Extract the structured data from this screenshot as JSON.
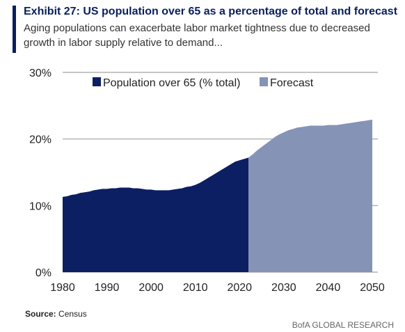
{
  "header": {
    "title": "Exhibit 27: US population over 65 as a percentage of total and forecast",
    "subtitle": "Aging populations can exacerbate labor market tightness due to decreased growth in labor supply relative to demand..."
  },
  "footer": {
    "source_label": "Source:",
    "source_text": " Census",
    "brand": "BofA GLOBAL RESEARCH"
  },
  "colors": {
    "accent": "#0a1f5c",
    "actual": "#0c1f63",
    "forecast": "#8593b6",
    "gridline": "#b3b3b3"
  },
  "chart_data": {
    "type": "area",
    "title": "",
    "xlabel": "",
    "ylabel": "",
    "xlim": [
      1980,
      2050
    ],
    "ylim": [
      0,
      30
    ],
    "x_ticks": [
      "1980",
      "1990",
      "2000",
      "2010",
      "2020",
      "2030",
      "2040",
      "2050"
    ],
    "y_ticks": [
      "0%",
      "10%",
      "20%",
      "30%"
    ],
    "grid": "horizontal",
    "legend_position": "top",
    "series": [
      {
        "name": "Population over 65 (% total)",
        "x": [
          1980,
          1981,
          1982,
          1983,
          1984,
          1985,
          1986,
          1987,
          1988,
          1989,
          1990,
          1991,
          1992,
          1993,
          1994,
          1995,
          1996,
          1997,
          1998,
          1999,
          2000,
          2001,
          2002,
          2003,
          2004,
          2005,
          2006,
          2007,
          2008,
          2009,
          2010,
          2011,
          2012,
          2013,
          2014,
          2015,
          2016,
          2017,
          2018,
          2019,
          2020,
          2021,
          2022
        ],
        "values": [
          11.3,
          11.4,
          11.6,
          11.7,
          11.9,
          12.0,
          12.1,
          12.3,
          12.4,
          12.5,
          12.5,
          12.6,
          12.6,
          12.7,
          12.7,
          12.7,
          12.6,
          12.6,
          12.5,
          12.4,
          12.4,
          12.3,
          12.3,
          12.3,
          12.3,
          12.4,
          12.5,
          12.6,
          12.8,
          12.9,
          13.1,
          13.4,
          13.8,
          14.2,
          14.6,
          15.0,
          15.4,
          15.8,
          16.2,
          16.6,
          16.8,
          17.0,
          17.2
        ]
      },
      {
        "name": "Forecast",
        "x": [
          2022,
          2023,
          2024,
          2025,
          2026,
          2027,
          2028,
          2029,
          2030,
          2031,
          2032,
          2033,
          2034,
          2035,
          2036,
          2037,
          2038,
          2039,
          2040,
          2041,
          2042,
          2043,
          2044,
          2045,
          2046,
          2047,
          2048,
          2049,
          2050
        ],
        "values": [
          17.2,
          17.7,
          18.3,
          18.8,
          19.3,
          19.8,
          20.3,
          20.7,
          21.0,
          21.3,
          21.5,
          21.7,
          21.8,
          21.9,
          22.0,
          22.0,
          22.0,
          22.0,
          22.1,
          22.1,
          22.1,
          22.2,
          22.3,
          22.4,
          22.5,
          22.6,
          22.7,
          22.8,
          22.9
        ]
      }
    ]
  }
}
